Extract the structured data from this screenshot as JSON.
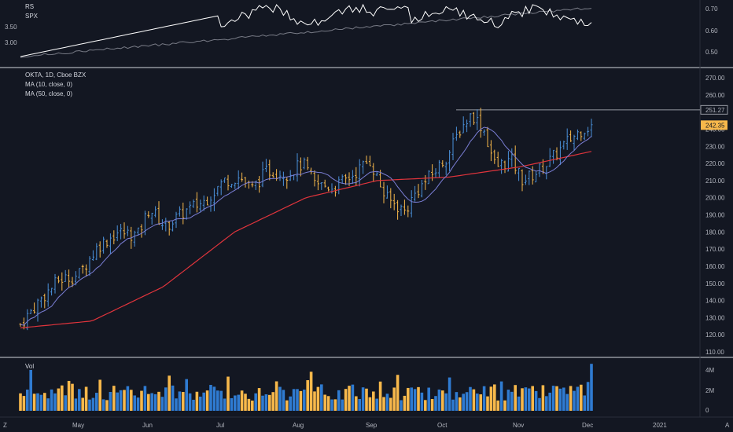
{
  "colors": {
    "background": "#131722",
    "separator": "#d1d4dc",
    "text": "#b2b5be",
    "up": "#4a90d9",
    "down": "#f7b84b",
    "ma10": "#7b7fd6",
    "ma50": "#e0343c",
    "rs": "#ffffff",
    "spx": "#787b86",
    "vol_up": "#2f7bd1",
    "vol_down": "#f7b84b",
    "resistance": "#9598a1",
    "last_price_bg": "#f7b84b"
  },
  "rs_pane": {
    "legend": [
      "RS",
      "SPX"
    ],
    "left_ticks": [
      "3.50",
      "3.00"
    ],
    "right_ticks": [
      "0.70",
      "0.60",
      "0.50"
    ]
  },
  "price_pane": {
    "legend": [
      "OKTA, 1D, Cboe BZX",
      "MA (10, close, 0)",
      "MA (50, close, 0)"
    ],
    "right_ticks": [
      "270.00",
      "260.00",
      "250.00",
      "240.00",
      "230.00",
      "220.00",
      "210.00",
      "200.00",
      "190.00",
      "180.00",
      "170.00",
      "160.00",
      "150.00",
      "140.00",
      "130.00",
      "120.00",
      "110.00"
    ],
    "resistance_label": "251.27",
    "last_price_label": "242.35"
  },
  "volume_pane": {
    "legend": "Vol",
    "right_ticks": [
      "4M",
      "2M",
      "0"
    ]
  },
  "time_axis": {
    "labels": [
      "May",
      "Jun",
      "Jul",
      "Aug",
      "Sep",
      "Oct",
      "Nov",
      "Dec",
      "2021"
    ]
  },
  "corner_labels": {
    "left": "Z",
    "right": "A"
  },
  "chart_data": {
    "type": "line",
    "symbol": "OKTA",
    "interval": "1D",
    "exchange": "Cboe BZX",
    "y_range_price": [
      107,
      276
    ],
    "resistance_level": 251.27,
    "last_price": 242.35,
    "close_approx_path": [
      {
        "x": "Apr",
        "y": 126
      },
      {
        "x": "May",
        "y": 152
      },
      {
        "x": "May",
        "y": 172
      },
      {
        "x": "Jun",
        "y": 194
      },
      {
        "x": "Jun",
        "y": 187
      },
      {
        "x": "Jul",
        "y": 210
      },
      {
        "x": "Jul",
        "y": 218
      },
      {
        "x": "Aug",
        "y": 208
      },
      {
        "x": "Aug",
        "y": 211
      },
      {
        "x": "Sep",
        "y": 222
      },
      {
        "x": "Sep",
        "y": 196
      },
      {
        "x": "Oct",
        "y": 218
      },
      {
        "x": "Oct",
        "y": 249
      },
      {
        "x": "Nov",
        "y": 220
      },
      {
        "x": "Nov",
        "y": 214
      },
      {
        "x": "Dec",
        "y": 240
      },
      {
        "x": "Dec",
        "y": 242.35
      }
    ],
    "ma50_approx_path": [
      {
        "x": "Apr",
        "y": 124
      },
      {
        "x": "May",
        "y": 128
      },
      {
        "x": "Jun",
        "y": 148
      },
      {
        "x": "Jul",
        "y": 180
      },
      {
        "x": "Aug",
        "y": 200
      },
      {
        "x": "Sep",
        "y": 210
      },
      {
        "x": "Oct",
        "y": 212
      },
      {
        "x": "Nov",
        "y": 218
      },
      {
        "x": "Dec",
        "y": 227
      }
    ]
  }
}
